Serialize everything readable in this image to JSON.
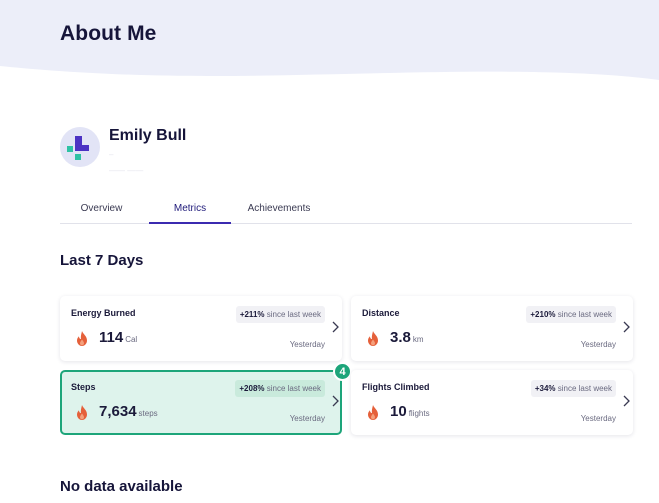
{
  "header": {
    "title": "About Me"
  },
  "profile": {
    "name": "Emily Bull",
    "subtitle_1": "–",
    "subtitle_2": "—— ——"
  },
  "tabs": [
    {
      "label": "Overview",
      "active": false
    },
    {
      "label": "Metrics",
      "active": true
    },
    {
      "label": "Achievements",
      "active": false
    }
  ],
  "section": {
    "title": "Last 7 Days"
  },
  "metrics": [
    {
      "title": "Energy Burned",
      "value": "114",
      "unit": "Cal",
      "change": "+211%",
      "change_suffix": "since last week",
      "date": "Yesterday",
      "icon": "flame-icon",
      "highlighted": false
    },
    {
      "title": "Distance",
      "value": "3.8",
      "unit": "km",
      "change": "+210%",
      "change_suffix": "since last week",
      "date": "Yesterday",
      "icon": "flame-icon",
      "highlighted": false
    },
    {
      "title": "Steps",
      "value": "7,634",
      "unit": "steps",
      "change": "+208%",
      "change_suffix": "since last week",
      "date": "Yesterday",
      "icon": "flame-icon",
      "highlighted": true
    },
    {
      "title": "Flights Climbed",
      "value": "10",
      "unit": "flights",
      "change": "+34%",
      "change_suffix": "since last week",
      "date": "Yesterday",
      "icon": "flame-icon",
      "highlighted": false
    }
  ],
  "step_marker": {
    "number": "4"
  },
  "no_data": {
    "title": "No data available"
  },
  "colors": {
    "header_band": "#eceef9",
    "accent": "#3b2ab0",
    "highlight_border": "#1da57a",
    "highlight_bg": "#def3ec",
    "flame": "#e5603a"
  }
}
